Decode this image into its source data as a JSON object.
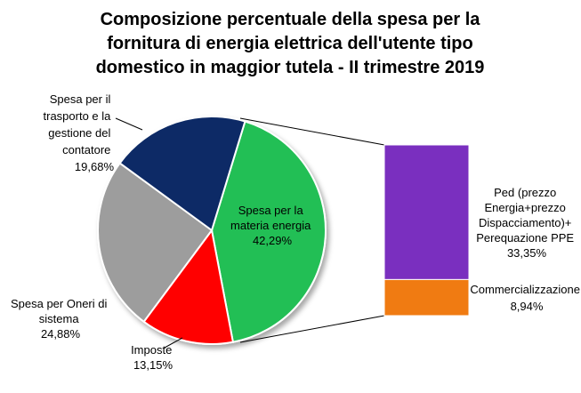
{
  "chart_data": {
    "type": "pie",
    "title": [
      "Composizione percentuale della spesa per la",
      "fornitura di energia elettrica dell'utente tipo",
      "domestico in maggior tutela - II trimestre 2019"
    ],
    "slices": [
      {
        "label": [
          "Spesa per la",
          "materia energia"
        ],
        "value_text": "42,29%",
        "value": 42.29,
        "color": "#22bf55"
      },
      {
        "label": [
          "Imposte"
        ],
        "value_text": "13,15%",
        "value": 13.15,
        "color": "#ff0000"
      },
      {
        "label": [
          "Spesa per Oneri di",
          "sistema"
        ],
        "value_text": "24,88%",
        "value": 24.88,
        "color": "#9d9d9d"
      },
      {
        "label": [
          "Spesa per il",
          "trasporto e la",
          "gestione del",
          "contatore"
        ],
        "value_text": "19,68%",
        "value": 19.68,
        "color": "#0e2b66"
      }
    ],
    "breakdown": {
      "parent": "Spesa per la materia energia",
      "segments": [
        {
          "label": [
            "Ped (prezzo",
            "Energia+prezzo",
            "Dispacciamento)+",
            "Perequazione PPE"
          ],
          "value_text": "33,35%",
          "value": 33.35,
          "color": "#7a2fbf"
        },
        {
          "label": [
            "Commercializzazione"
          ],
          "value_text": "8,94%",
          "value": 8.94,
          "color": "#f07b12"
        }
      ]
    }
  }
}
